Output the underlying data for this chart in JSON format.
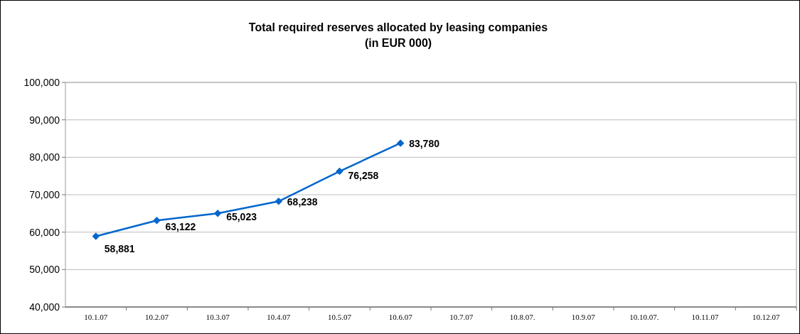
{
  "chart_data": {
    "type": "line",
    "title": "Total required reserves allocated by leasing companies",
    "subtitle": "(in EUR 000)",
    "categories": [
      "10.1.07",
      "10.2.07",
      "10.3.07",
      "10.4.07",
      "10.5.07",
      "10.6.07",
      "10.7.07",
      "10.8.07.",
      "10.9.07",
      "10.10.07.",
      "10.11.07",
      "10.12.07"
    ],
    "series": [
      {
        "color": "#0066cc",
        "values": [
          58881,
          63122,
          65023,
          68238,
          76258,
          83780,
          null,
          null,
          null,
          null,
          null,
          null
        ],
        "value_labels": [
          "58,881",
          "63,122",
          "65,023",
          "68,238",
          "76,258",
          "83,780",
          null,
          null,
          null,
          null,
          null,
          null
        ]
      }
    ],
    "ylim": [
      40000,
      100000
    ],
    "yticks": [
      {
        "value": 40000,
        "label": "40,000"
      },
      {
        "value": 50000,
        "label": "50,000"
      },
      {
        "value": 60000,
        "label": "60,000"
      },
      {
        "value": 70000,
        "label": "70,000"
      },
      {
        "value": 80000,
        "label": "80,000"
      },
      {
        "value": 90000,
        "label": "90,000"
      },
      {
        "value": 100000,
        "label": "100,000"
      }
    ],
    "grid": "y",
    "marker": "diamond",
    "line_style": "solid"
  }
}
